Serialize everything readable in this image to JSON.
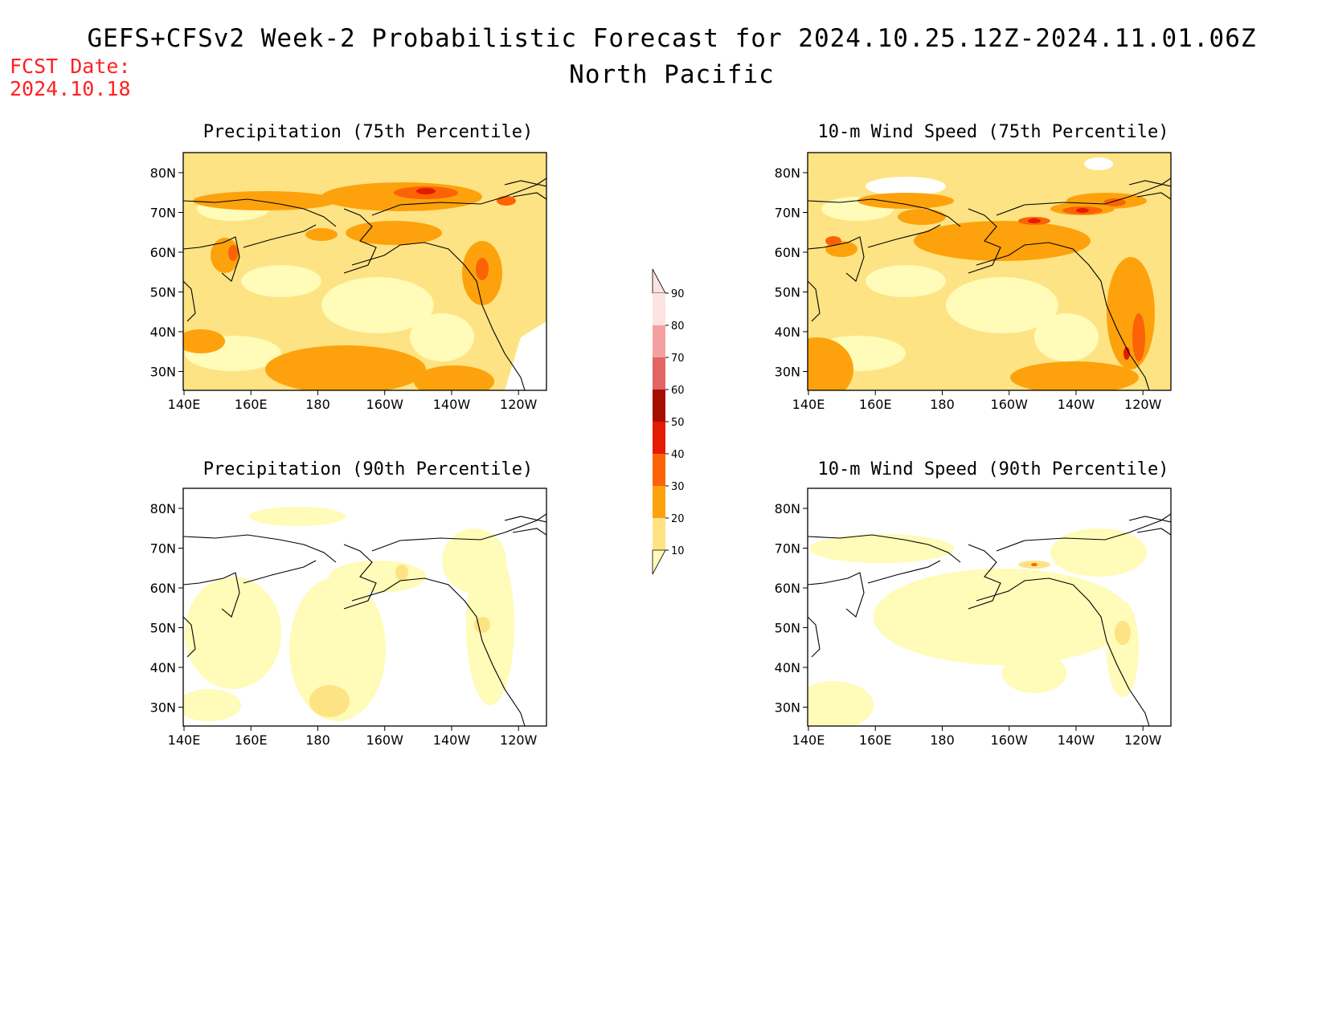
{
  "header": {
    "title": "GEFS+CFSv2 Week-2 Probabilistic Forecast for 2024.10.25.12Z-2024.11.01.06Z",
    "subtitle": "North Pacific",
    "fcst_label": "FCST Date:",
    "fcst_date": "2024.10.18"
  },
  "panels": [
    {
      "id": "precip75",
      "title": "Precipitation (75th Percentile)",
      "intensity": "high",
      "variable": "precip"
    },
    {
      "id": "wind75",
      "title": "10-m Wind Speed (75th Percentile)",
      "intensity": "high",
      "variable": "wind"
    },
    {
      "id": "precip90",
      "title": "Precipitation (90th Percentile)",
      "intensity": "low",
      "variable": "precip"
    },
    {
      "id": "wind90",
      "title": "10-m Wind Speed (90th Percentile)",
      "intensity": "low",
      "variable": "wind"
    }
  ],
  "axes": {
    "x_ticks": [
      "140E",
      "160E",
      "180",
      "160W",
      "140W",
      "120W"
    ],
    "y_ticks": [
      "80N",
      "70N",
      "60N",
      "50N",
      "40N",
      "30N"
    ]
  },
  "colorbar": {
    "levels": [
      "10",
      "20",
      "30",
      "40",
      "50",
      "60",
      "70",
      "80",
      "90"
    ],
    "colors": [
      "#fffbb8",
      "#fde383",
      "#fda20c",
      "#fb6306",
      "#e31b00",
      "#a60f00",
      "#e26464",
      "#f5a0a0",
      "#fde2e2"
    ]
  }
}
